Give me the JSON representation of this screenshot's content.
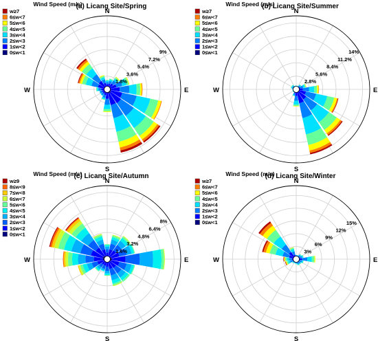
{
  "chart_data": [
    {
      "type": "windrose",
      "title": "(a) Licang Site/Spring",
      "legend_title": "Wind Speed (m/s)",
      "legend_placement": "top-left",
      "speed_bins": [
        "0≤w<1",
        "1≤w<2",
        "2≤w<3",
        "3≤w<4",
        "4≤w<5",
        "5≤w<6",
        "6≤w<7",
        "w≥7"
      ],
      "bin_colors": [
        "#00007f",
        "#0000ff",
        "#0080ff",
        "#00e0ff",
        "#66ff99",
        "#ffff00",
        "#ff8000",
        "#b00000"
      ],
      "directions_deg": [
        0,
        22.5,
        45,
        67.5,
        90,
        112.5,
        135,
        157.5,
        180,
        202.5,
        225,
        247.5,
        270,
        292.5,
        315,
        337.5
      ],
      "radial_ticks": [
        1.8,
        3.6,
        5.4,
        7.2,
        9
      ],
      "radial_tick_labels": [
        "1.8%",
        "3.6%",
        "5.4%",
        "7.2%",
        "9%"
      ],
      "r_max": 10,
      "cardinals": [
        "N",
        "E",
        "S",
        "W"
      ],
      "frequencies": [
        [
          0.3,
          0.4,
          0.3,
          0.2,
          0.1,
          0,
          0,
          0
        ],
        [
          0.3,
          0.5,
          0.4,
          0.2,
          0.1,
          0,
          0,
          0
        ],
        [
          0.4,
          0.6,
          0.5,
          0.3,
          0.2,
          0.1,
          0,
          0
        ],
        [
          0.4,
          0.9,
          0.8,
          0.6,
          0.3,
          0.1,
          0,
          0
        ],
        [
          0.5,
          1.2,
          1.3,
          1.0,
          0.5,
          0.2,
          0.1,
          0
        ],
        [
          0.5,
          1.6,
          2.0,
          1.9,
          1.1,
          0.4,
          0.1,
          0
        ],
        [
          0.6,
          1.7,
          2.1,
          2.0,
          1.3,
          0.6,
          0.3,
          0.2
        ],
        [
          0.6,
          1.6,
          1.8,
          1.9,
          1.4,
          0.8,
          0.4,
          0.3
        ],
        [
          0.4,
          0.9,
          0.8,
          0.6,
          0.3,
          0.1,
          0,
          0
        ],
        [
          0.3,
          0.5,
          0.4,
          0.2,
          0.1,
          0,
          0,
          0
        ],
        [
          0.3,
          0.4,
          0.3,
          0.1,
          0,
          0,
          0,
          0
        ],
        [
          0.3,
          0.4,
          0.3,
          0.1,
          0,
          0,
          0,
          0
        ],
        [
          0.3,
          0.5,
          0.4,
          0.2,
          0.1,
          0,
          0,
          0
        ],
        [
          0.4,
          0.9,
          0.9,
          0.8,
          0.5,
          0.3,
          0.2,
          0.1
        ],
        [
          0.4,
          1.0,
          1.1,
          1.0,
          0.7,
          0.4,
          0.3,
          0.2
        ],
        [
          0.3,
          0.6,
          0.5,
          0.3,
          0.2,
          0.1,
          0,
          0
        ]
      ]
    },
    {
      "type": "windrose",
      "title": "(b) Licang Site/Summer",
      "legend_title": "Wind Speed (m/s)",
      "legend_placement": "top-left",
      "speed_bins": [
        "0≤w<1",
        "1≤w<2",
        "2≤w<3",
        "3≤w<4",
        "4≤w<5",
        "5≤w<6",
        "6≤w<7",
        "w≥7"
      ],
      "bin_colors": [
        "#00007f",
        "#0000ff",
        "#0080ff",
        "#00e0ff",
        "#66ff99",
        "#ffff00",
        "#ff8000",
        "#b00000"
      ],
      "directions_deg": [
        0,
        22.5,
        45,
        67.5,
        90,
        112.5,
        135,
        157.5,
        180,
        202.5,
        225,
        247.5,
        270,
        292.5,
        315,
        337.5
      ],
      "radial_ticks": [
        2.8,
        5.6,
        8.4,
        11.2,
        14
      ],
      "radial_tick_labels": [
        "2.8%",
        "5.6%",
        "8.4%",
        "11.2%",
        "14%"
      ],
      "r_max": 15.5,
      "cardinals": [
        "N",
        "E",
        "S",
        "W"
      ],
      "frequencies": [
        [
          0.2,
          0.3,
          0.2,
          0.1,
          0,
          0,
          0,
          0
        ],
        [
          0.2,
          0.3,
          0.2,
          0.1,
          0,
          0,
          0,
          0
        ],
        [
          0.3,
          0.4,
          0.3,
          0.2,
          0.1,
          0,
          0,
          0
        ],
        [
          0.3,
          0.6,
          0.6,
          0.4,
          0.2,
          0.1,
          0,
          0
        ],
        [
          0.4,
          1.0,
          1.3,
          1.1,
          0.6,
          0.3,
          0.1,
          0
        ],
        [
          0.5,
          1.6,
          2.2,
          2.4,
          1.5,
          0.6,
          0.2,
          0.1
        ],
        [
          0.6,
          2.0,
          2.8,
          3.0,
          2.0,
          0.9,
          0.4,
          0.2
        ],
        [
          0.7,
          2.3,
          3.2,
          3.5,
          2.3,
          1.2,
          0.5,
          0.3
        ],
        [
          0.4,
          1.0,
          1.0,
          0.8,
          0.3,
          0.1,
          0,
          0
        ],
        [
          0.3,
          0.5,
          0.4,
          0.2,
          0.1,
          0,
          0,
          0
        ],
        [
          0.2,
          0.3,
          0.2,
          0.1,
          0,
          0,
          0,
          0
        ],
        [
          0.2,
          0.3,
          0.2,
          0.1,
          0,
          0,
          0,
          0
        ],
        [
          0.2,
          0.3,
          0.2,
          0.1,
          0,
          0,
          0,
          0
        ],
        [
          0.2,
          0.4,
          0.3,
          0.2,
          0.1,
          0,
          0,
          0
        ],
        [
          0.2,
          0.4,
          0.3,
          0.2,
          0.1,
          0,
          0,
          0
        ],
        [
          0.2,
          0.3,
          0.2,
          0.1,
          0,
          0,
          0,
          0
        ]
      ]
    },
    {
      "type": "windrose",
      "title": "(c) Licang Site/Autumn",
      "legend_title": "Wind Speed (m/s)",
      "legend_placement": "top-left",
      "speed_bins": [
        "0≤w<1",
        "1≤w<2",
        "2≤w<3",
        "3≤w<4",
        "4≤w<5",
        "5≤w<6",
        "6≤w<7",
        "7≤w<8",
        "8≤w<9",
        "w≥9"
      ],
      "bin_colors": [
        "#00007f",
        "#0000ff",
        "#0060ff",
        "#00b0ff",
        "#00f0f0",
        "#66ff99",
        "#ccff33",
        "#ffcc00",
        "#ff6600",
        "#b00000"
      ],
      "directions_deg": [
        0,
        22.5,
        45,
        67.5,
        90,
        112.5,
        135,
        157.5,
        180,
        202.5,
        225,
        247.5,
        270,
        292.5,
        315,
        337.5
      ],
      "radial_ticks": [
        1.6,
        3.2,
        4.8,
        6.4,
        8
      ],
      "radial_tick_labels": [
        "1.6%",
        "3.2%",
        "4.8%",
        "6.4%",
        "8%"
      ],
      "r_max": 8.8,
      "cardinals": [
        "N",
        "E",
        "S",
        "W"
      ],
      "frequencies": [
        [
          0.3,
          0.5,
          0.4,
          0.3,
          0.2,
          0.1,
          0,
          0,
          0,
          0
        ],
        [
          0.4,
          0.8,
          0.7,
          0.5,
          0.3,
          0.2,
          0.1,
          0,
          0,
          0
        ],
        [
          0.4,
          0.9,
          0.8,
          0.6,
          0.4,
          0.2,
          0.1,
          0,
          0,
          0
        ],
        [
          0.5,
          1.0,
          0.9,
          0.6,
          0.3,
          0.1,
          0,
          0,
          0,
          0
        ],
        [
          0.6,
          1.6,
          1.7,
          1.6,
          1.0,
          0.3,
          0.1,
          0,
          0,
          0
        ],
        [
          0.5,
          1.0,
          0.9,
          0.6,
          0.3,
          0.1,
          0,
          0,
          0,
          0
        ],
        [
          0.4,
          0.9,
          0.8,
          0.6,
          0.4,
          0.2,
          0,
          0,
          0,
          0
        ],
        [
          0.4,
          0.8,
          0.8,
          0.6,
          0.4,
          0.2,
          0.1,
          0,
          0,
          0
        ],
        [
          0.3,
          0.6,
          0.5,
          0.3,
          0.2,
          0.1,
          0,
          0,
          0,
          0
        ],
        [
          0.3,
          0.5,
          0.4,
          0.2,
          0.1,
          0,
          0,
          0,
          0,
          0
        ],
        [
          0.3,
          0.5,
          0.4,
          0.3,
          0.2,
          0.1,
          0,
          0,
          0,
          0
        ],
        [
          0.4,
          0.8,
          0.7,
          0.6,
          0.5,
          0.3,
          0.2,
          0.1,
          0,
          0
        ],
        [
          0.5,
          1.1,
          1.0,
          0.9,
          0.7,
          0.5,
          0.3,
          0.2,
          0.1,
          0
        ],
        [
          0.6,
          1.4,
          1.3,
          1.1,
          0.9,
          0.7,
          0.5,
          0.3,
          0.2,
          0.1
        ],
        [
          0.5,
          1.2,
          1.1,
          1.0,
          0.8,
          0.6,
          0.4,
          0.3,
          0.1,
          0.1
        ],
        [
          0.4,
          0.8,
          0.7,
          0.5,
          0.4,
          0.2,
          0.1,
          0,
          0,
          0
        ]
      ]
    },
    {
      "type": "windrose",
      "title": "(d) Licang Site/Winter",
      "legend_title": "Wind Speed (m/s)",
      "legend_placement": "top-left",
      "speed_bins": [
        "0≤w<1",
        "1≤w<2",
        "2≤w<3",
        "3≤w<4",
        "4≤w<5",
        "5≤w<6",
        "6≤w<7",
        "w≥7"
      ],
      "bin_colors": [
        "#00007f",
        "#0000ff",
        "#0080ff",
        "#00e0ff",
        "#66ff99",
        "#ffff00",
        "#ff8000",
        "#b00000"
      ],
      "directions_deg": [
        0,
        22.5,
        45,
        67.5,
        90,
        112.5,
        135,
        157.5,
        180,
        202.5,
        225,
        247.5,
        270,
        292.5,
        315,
        337.5
      ],
      "radial_ticks": [
        3,
        6,
        9,
        12,
        15
      ],
      "radial_tick_labels": [
        "3%",
        "6%",
        "9%",
        "12%",
        "15%"
      ],
      "r_max": 17.3,
      "cardinals": [
        "N",
        "E",
        "S",
        "W"
      ],
      "frequencies": [
        [
          0.2,
          0.4,
          0.3,
          0.1,
          0,
          0,
          0,
          0
        ],
        [
          0.2,
          0.4,
          0.3,
          0.1,
          0,
          0,
          0,
          0
        ],
        [
          0.3,
          0.5,
          0.4,
          0.2,
          0.1,
          0,
          0,
          0
        ],
        [
          0.3,
          0.6,
          0.5,
          0.3,
          0.1,
          0,
          0,
          0
        ],
        [
          0.4,
          1.0,
          1.2,
          1.1,
          0.6,
          0.2,
          0,
          0
        ],
        [
          0.3,
          0.6,
          0.5,
          0.3,
          0.1,
          0,
          0,
          0
        ],
        [
          0.3,
          0.5,
          0.4,
          0.2,
          0.1,
          0,
          0,
          0
        ],
        [
          0.3,
          0.5,
          0.4,
          0.2,
          0.1,
          0,
          0,
          0
        ],
        [
          0.2,
          0.4,
          0.3,
          0.2,
          0.1,
          0,
          0,
          0
        ],
        [
          0.2,
          0.4,
          0.3,
          0.1,
          0,
          0,
          0,
          0
        ],
        [
          0.2,
          0.4,
          0.3,
          0.2,
          0.1,
          0,
          0,
          0
        ],
        [
          0.3,
          0.6,
          0.6,
          0.5,
          0.3,
          0.2,
          0.1,
          0.1
        ],
        [
          0.3,
          0.7,
          0.7,
          0.5,
          0.4,
          0.2,
          0.1,
          0.1
        ],
        [
          0.4,
          1.3,
          1.6,
          1.7,
          1.4,
          0.9,
          0.6,
          0.3
        ],
        [
          0.5,
          1.6,
          2.1,
          2.3,
          1.9,
          1.2,
          0.8,
          0.4
        ],
        [
          0.3,
          0.8,
          0.8,
          0.6,
          0.3,
          0.1,
          0,
          0
        ]
      ]
    }
  ]
}
